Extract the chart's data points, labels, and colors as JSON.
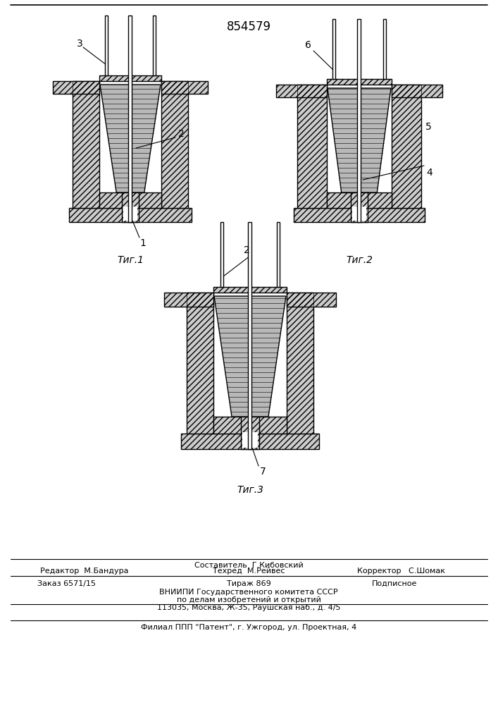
{
  "patent_number": "854579",
  "background_color": "#ffffff",
  "fig1_caption": "Τиг.1",
  "fig2_caption": "Τиг.2",
  "fig3_caption": "Τиг.3",
  "footer_editor": "Редактор  М.Бандура",
  "footer_composer": "Составитель  Г.Кибовский",
  "footer_corrector": "Корректор   С.Шомак",
  "footer_techred": "Техред  М.Рейвес",
  "footer_order": "Заказ 6571/15",
  "footer_copies": "Тираж 869",
  "footer_sub": "Подписное",
  "footer_vniipи": "ВНИИПИ Государственного комитета СССР",
  "footer_affairs": "по делам изобретений и открытий",
  "footer_address": "113035, Москва, Ж-35, Раушская наб., д. 4/5",
  "footer_filial": "Филиал ППП \"Патент\", г. Ужгород, ул. Проектная, 4"
}
